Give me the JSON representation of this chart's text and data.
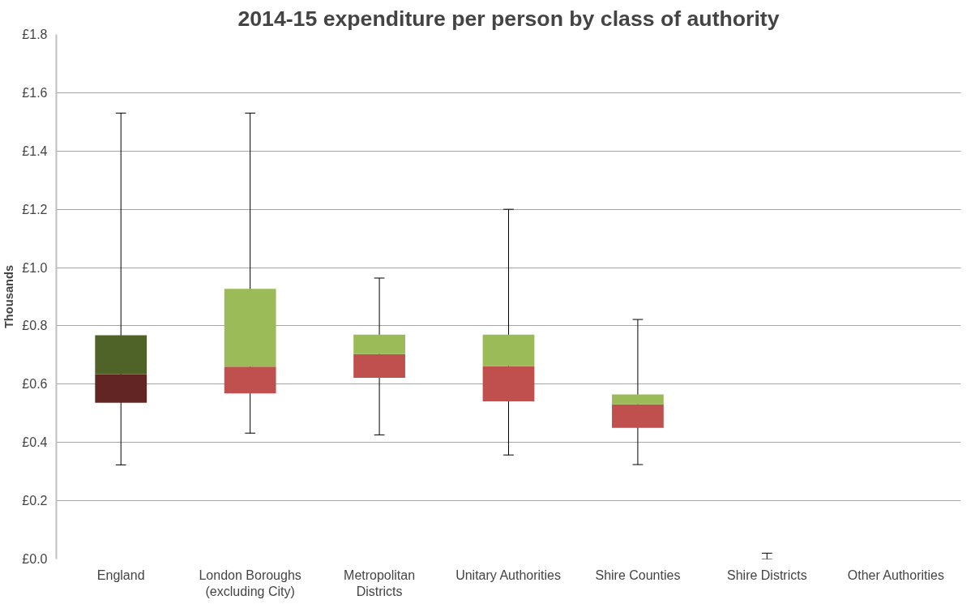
{
  "chart_data": {
    "type": "box",
    "title": "2014-15 expenditure per person by class of authority",
    "ylabel": "Thousands",
    "categories": [
      "England",
      "London Boroughs (excluding City)",
      "Metropolitan Districts",
      "Unitary Authorities",
      "Shire Counties",
      "Shire Districts",
      "Other Authorities"
    ],
    "boxes": [
      {
        "low": 0.323,
        "q1": 0.536,
        "median": 0.634,
        "q3": 0.768,
        "high": 1.53
      },
      {
        "low": 0.432,
        "q1": 0.568,
        "median": 0.66,
        "q3": 0.927,
        "high": 1.53
      },
      {
        "low": 0.426,
        "q1": 0.622,
        "median": 0.703,
        "q3": 0.77,
        "high": 0.964
      },
      {
        "low": 0.357,
        "q1": 0.541,
        "median": 0.662,
        "q3": 0.77,
        "high": 1.2
      },
      {
        "low": 0.324,
        "q1": 0.45,
        "median": 0.531,
        "q3": 0.565,
        "high": 0.822
      },
      {
        "low": 0,
        "q1": 0,
        "median": 0,
        "q3": 0,
        "high": 0.02
      },
      null
    ],
    "colors": [
      [
        "#632523",
        "#4f6228"
      ],
      [
        "#c0504d",
        "#9bbb59"
      ],
      [
        "#c0504d",
        "#9bbb59"
      ],
      [
        "#c0504d",
        "#9bbb59"
      ],
      [
        "#c0504d",
        "#9bbb59"
      ],
      [
        "#c0504d",
        "#9bbb59"
      ],
      [
        "#c0504d",
        "#9bbb59"
      ]
    ],
    "ylim": [
      0,
      1.8
    ],
    "yticks": [
      {
        "value": 0,
        "label": "£0.0"
      },
      {
        "value": 0.2,
        "label": "£0.2"
      },
      {
        "value": 0.4,
        "label": "£0.4"
      },
      {
        "value": 0.6,
        "label": "£0.6"
      },
      {
        "value": 0.8,
        "label": "£0.8"
      },
      {
        "value": 1.0,
        "label": "£1.0"
      },
      {
        "value": 1.2,
        "label": "£1.2"
      },
      {
        "value": 1.4,
        "label": "£1.4"
      },
      {
        "value": 1.6,
        "label": "£1.6"
      },
      {
        "value": 1.8,
        "label": "£1.8"
      }
    ],
    "grid": "y"
  }
}
